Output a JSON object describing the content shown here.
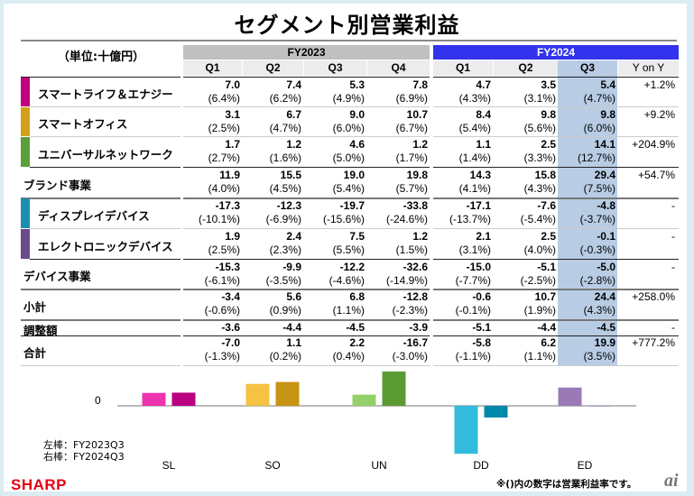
{
  "title": "セグメント別営業利益",
  "unit_label": "（単位:十億円）",
  "header": {
    "fy2023": "FY2023",
    "fy2024": "FY2024",
    "fy2023_quarters": [
      "Q1",
      "Q2",
      "Q3",
      "Q4"
    ],
    "fy2024_quarters": [
      "Q1",
      "Q2",
      "Q3"
    ],
    "yoy": "Y on Y"
  },
  "colors": {
    "fy2023_header": "#c0c0c0",
    "fy2024_header": "#3333ee",
    "highlight_column": "#b8cce4",
    "brand_red": "#e60012"
  },
  "rows": [
    {
      "label": "スマートライフ＆エナジー",
      "segment_color": "#c0007f",
      "indent": true,
      "values": [
        "7.0",
        "7.4",
        "5.3",
        "7.8",
        "4.7",
        "3.5",
        "5.4"
      ],
      "margins": [
        "(6.4%)",
        "(6.2%)",
        "(4.9%)",
        "(6.9%)",
        "(4.3%)",
        "(3.1%)",
        "(4.7%)"
      ],
      "yoy": "+1.2%"
    },
    {
      "label": "スマートオフィス",
      "segment_color": "#d4a017",
      "indent": true,
      "values": [
        "3.1",
        "6.7",
        "9.0",
        "10.7",
        "8.4",
        "9.8",
        "9.8"
      ],
      "margins": [
        "(2.5%)",
        "(4.7%)",
        "(6.0%)",
        "(6.7%)",
        "(5.4%)",
        "(5.6%)",
        "(6.0%)"
      ],
      "yoy": "+9.2%"
    },
    {
      "label": "ユニバーサルネットワーク",
      "segment_color": "#5c9e3a",
      "indent": true,
      "values": [
        "1.7",
        "1.2",
        "4.6",
        "1.2",
        "1.1",
        "2.5",
        "14.1"
      ],
      "margins": [
        "(2.7%)",
        "(1.6%)",
        "(5.0%)",
        "(1.7%)",
        "(1.4%)",
        "(3.3%)",
        "(12.7%)"
      ],
      "yoy": "+204.9%"
    },
    {
      "label": "ブランド事業",
      "segment_color": null,
      "indent": false,
      "values": [
        "11.9",
        "15.5",
        "19.0",
        "19.8",
        "14.3",
        "15.8",
        "29.4"
      ],
      "margins": [
        "(4.0%)",
        "(4.5%)",
        "(5.4%)",
        "(5.7%)",
        "(4.1%)",
        "(4.3%)",
        "(7.5%)"
      ],
      "yoy": "+54.7%"
    },
    {
      "label": "ディスプレイデバイス",
      "segment_color": "#1a8fb0",
      "indent": true,
      "values": [
        "-17.3",
        "-12.3",
        "-19.7",
        "-33.8",
        "-17.1",
        "-7.6",
        "-4.8"
      ],
      "margins": [
        "(-10.1%)",
        "(-6.9%)",
        "(-15.6%)",
        "(-24.6%)",
        "(-13.7%)",
        "(-5.4%)",
        "(-3.7%)"
      ],
      "yoy": "-"
    },
    {
      "label": "エレクトロニックデバイス",
      "segment_color": "#6a4a8c",
      "indent": true,
      "values": [
        "1.9",
        "2.4",
        "7.5",
        "1.2",
        "2.1",
        "2.5",
        "-0.1"
      ],
      "margins": [
        "(2.5%)",
        "(2.3%)",
        "(5.5%)",
        "(1.5%)",
        "(3.1%)",
        "(4.0%)",
        "(-0.3%)"
      ],
      "yoy": "-"
    },
    {
      "label": "デバイス事業",
      "segment_color": null,
      "indent": false,
      "values": [
        "-15.3",
        "-9.9",
        "-12.2",
        "-32.6",
        "-15.0",
        "-5.1",
        "-5.0"
      ],
      "margins": [
        "(-6.1%)",
        "(-3.5%)",
        "(-4.6%)",
        "(-14.9%)",
        "(-7.7%)",
        "(-2.5%)",
        "(-2.8%)"
      ],
      "yoy": "-"
    },
    {
      "label": "小計",
      "segment_color": null,
      "indent": false,
      "values": [
        "-3.4",
        "5.6",
        "6.8",
        "-12.8",
        "-0.6",
        "10.7",
        "24.4"
      ],
      "margins": [
        "(-0.6%)",
        "(0.9%)",
        "(1.1%)",
        "(-2.3%)",
        "(-0.1%)",
        "(1.9%)",
        "(4.3%)"
      ],
      "yoy": "+258.0%"
    },
    {
      "label": "調整額",
      "segment_color": null,
      "indent": false,
      "values": [
        "-3.6",
        "-4.4",
        "-4.5",
        "-3.9",
        "-5.1",
        "-4.4",
        "-4.5"
      ],
      "margins": [
        "",
        "",
        "",
        "",
        "",
        "",
        ""
      ],
      "yoy": "-"
    },
    {
      "label": "合計",
      "segment_color": null,
      "indent": false,
      "values": [
        "-7.0",
        "1.1",
        "2.2",
        "-16.7",
        "-5.8",
        "6.2",
        "19.9"
      ],
      "margins": [
        "(-1.3%)",
        "(0.2%)",
        "(0.4%)",
        "(-3.0%)",
        "(-1.1%)",
        "(1.1%)",
        "(3.5%)"
      ],
      "yoy": "+777.2%"
    }
  ],
  "chart": {
    "zero_label": "0",
    "legend_left": "左棒：FY2023Q3",
    "legend_right": "右棒：FY2024Q3",
    "categories": [
      "SL",
      "SO",
      "UN",
      "DD",
      "ED"
    ],
    "fy2023q3": [
      5.3,
      9.0,
      4.6,
      -19.7,
      7.5
    ],
    "fy2024q3": [
      5.4,
      9.8,
      14.1,
      -4.8,
      -0.1
    ],
    "left_colors": [
      "#ee33b0",
      "#f5c242",
      "#94d06a",
      "#33bbdd",
      "#9a7ab4"
    ],
    "right_colors": [
      "#bb0080",
      "#c89414",
      "#5c9a34",
      "#0088aa",
      "#6a4a8c"
    ]
  },
  "chart_data": {
    "type": "bar",
    "categories": [
      "SL",
      "SO",
      "UN",
      "DD",
      "ED"
    ],
    "series": [
      {
        "name": "FY2023Q3",
        "values": [
          5.3,
          9.0,
          4.6,
          -19.7,
          7.5
        ]
      },
      {
        "name": "FY2024Q3",
        "values": [
          5.4,
          9.8,
          14.1,
          -4.8,
          -0.1
        ]
      }
    ],
    "title": "",
    "xlabel": "",
    "ylabel": "",
    "yticks": [
      "0"
    ],
    "legend": [
      "左棒：FY2023Q3",
      "右棒：FY2024Q3"
    ],
    "legend_position": "bottom-left"
  },
  "footnote": "※()内の数字は営業利益率です。",
  "logo": "SHARP",
  "watermark": "ai"
}
